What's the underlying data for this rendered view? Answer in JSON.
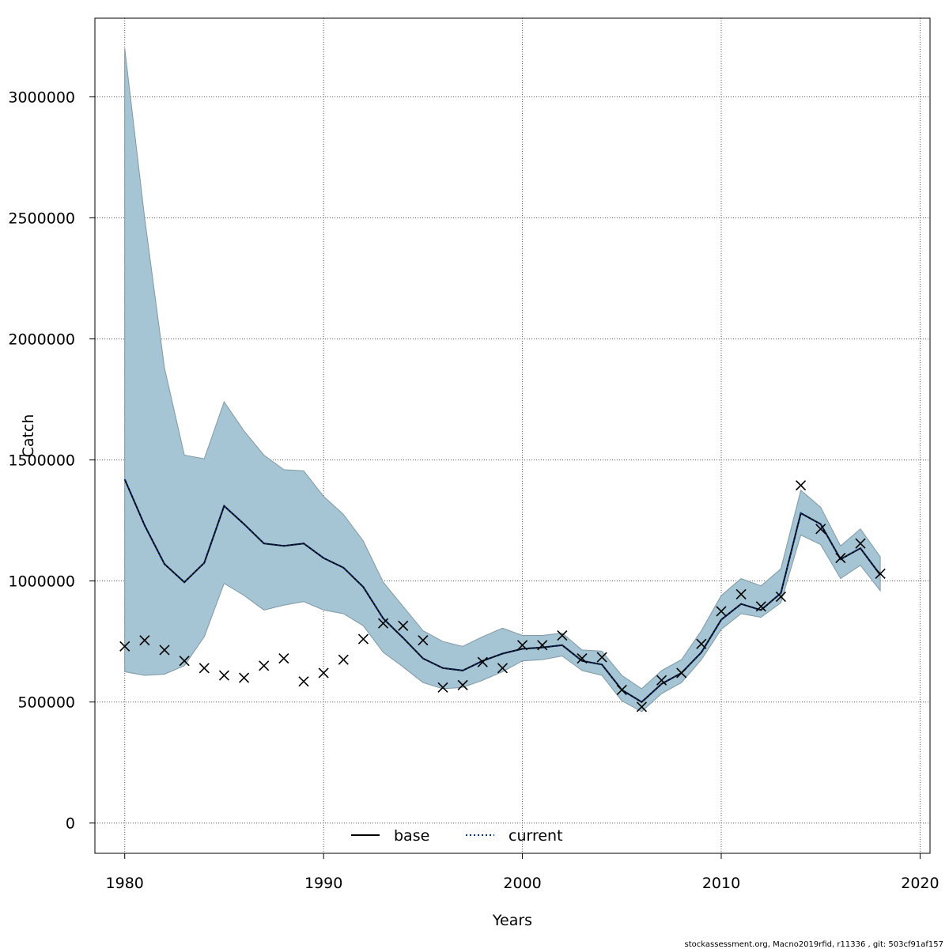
{
  "chart_data": {
    "type": "line",
    "title": "",
    "xlabel": "Years",
    "ylabel": "Catch",
    "xlim": [
      1978.5,
      2020.5
    ],
    "ylim": [
      -125000,
      3325000
    ],
    "xticks": [
      1980,
      1990,
      2000,
      2010,
      2020
    ],
    "yticks": [
      0,
      500000,
      1000000,
      1500000,
      2000000,
      2500000,
      3000000
    ],
    "grid": true,
    "legend_position": "bottom-center",
    "x": [
      1980,
      1981,
      1982,
      1983,
      1984,
      1985,
      1986,
      1987,
      1988,
      1989,
      1990,
      1991,
      1992,
      1993,
      1994,
      1995,
      1996,
      1997,
      1998,
      1999,
      2000,
      2001,
      2002,
      2003,
      2004,
      2005,
      2006,
      2007,
      2008,
      2009,
      2010,
      2011,
      2012,
      2013,
      2014,
      2015,
      2016,
      2017,
      2018
    ],
    "series": [
      {
        "name": "base",
        "style": "solid",
        "color": "#000000",
        "values": [
          1420000,
          1230000,
          1070000,
          995000,
          1075000,
          1310000,
          1235000,
          1155000,
          1145000,
          1155000,
          1095000,
          1055000,
          975000,
          845000,
          765000,
          680000,
          640000,
          630000,
          670000,
          700000,
          720000,
          725000,
          735000,
          670000,
          655000,
          550000,
          500000,
          575000,
          620000,
          705000,
          840000,
          905000,
          880000,
          950000,
          1280000,
          1235000,
          1090000,
          1135000,
          1025000
        ]
      },
      {
        "name": "current",
        "style": "dotted",
        "color": "#00337f",
        "values": [
          1420000,
          1230000,
          1070000,
          995000,
          1075000,
          1310000,
          1235000,
          1155000,
          1145000,
          1155000,
          1095000,
          1055000,
          975000,
          845000,
          765000,
          680000,
          640000,
          630000,
          670000,
          700000,
          720000,
          725000,
          735000,
          670000,
          655000,
          550000,
          500000,
          575000,
          620000,
          705000,
          840000,
          905000,
          880000,
          950000,
          1280000,
          1235000,
          1090000,
          1135000,
          1025000
        ]
      }
    ],
    "uncertainty_band": {
      "color": "#a5c4d4",
      "upper": [
        3200000,
        2500000,
        1880000,
        1520000,
        1505000,
        1740000,
        1620000,
        1520000,
        1460000,
        1455000,
        1350000,
        1275000,
        1165000,
        995000,
        895000,
        795000,
        750000,
        730000,
        770000,
        805000,
        775000,
        775000,
        785000,
        715000,
        710000,
        610000,
        555000,
        630000,
        675000,
        795000,
        940000,
        1010000,
        980000,
        1050000,
        1375000,
        1305000,
        1145000,
        1215000,
        1100000
      ],
      "lower": [
        625000,
        610000,
        615000,
        650000,
        770000,
        990000,
        940000,
        880000,
        900000,
        915000,
        880000,
        865000,
        815000,
        705000,
        645000,
        580000,
        555000,
        560000,
        590000,
        625000,
        670000,
        675000,
        690000,
        630000,
        610000,
        505000,
        460000,
        535000,
        580000,
        675000,
        800000,
        865000,
        850000,
        910000,
        1190000,
        1150000,
        1010000,
        1065000,
        960000
      ]
    },
    "observed": {
      "marker": "x",
      "color": "#000000",
      "values": [
        730000,
        755000,
        715000,
        670000,
        640000,
        610000,
        600000,
        650000,
        680000,
        585000,
        620000,
        675000,
        760000,
        825000,
        815000,
        755000,
        560000,
        570000,
        665000,
        640000,
        735000,
        735000,
        775000,
        680000,
        685000,
        550000,
        480000,
        590000,
        620000,
        740000,
        875000,
        945000,
        895000,
        935000,
        1395000,
        1215000,
        1095000,
        1155000,
        1030000
      ]
    },
    "footer": "stockassessment.org, Macno2019rfid, r11336 , git: 503cf91af157"
  }
}
